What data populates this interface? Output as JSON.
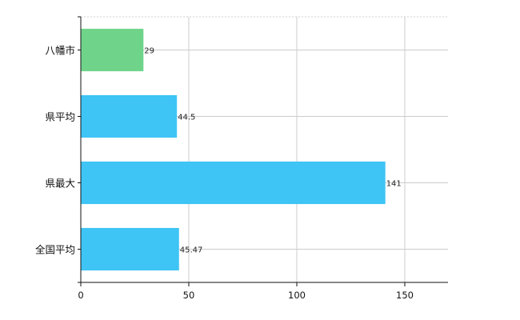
{
  "chart_data": {
    "type": "bar",
    "orientation": "horizontal",
    "categories": [
      "八幡市",
      "県平均",
      "県最大",
      "全国平均"
    ],
    "values": [
      29,
      44.5,
      141,
      45.47
    ],
    "value_labels": [
      "29",
      "44.5",
      "141",
      "45.47"
    ],
    "bar_colors": [
      "#6fd48a",
      "#3ec4f5",
      "#3ec4f5",
      "#3ec4f5"
    ],
    "xlim": [
      0,
      170
    ],
    "xticks": [
      0,
      50,
      100,
      150
    ],
    "xtick_labels": [
      "0",
      "50",
      "100",
      "150"
    ],
    "grid": true,
    "grid_color": "#cccccc",
    "title": "",
    "xlabel": "",
    "ylabel": ""
  }
}
